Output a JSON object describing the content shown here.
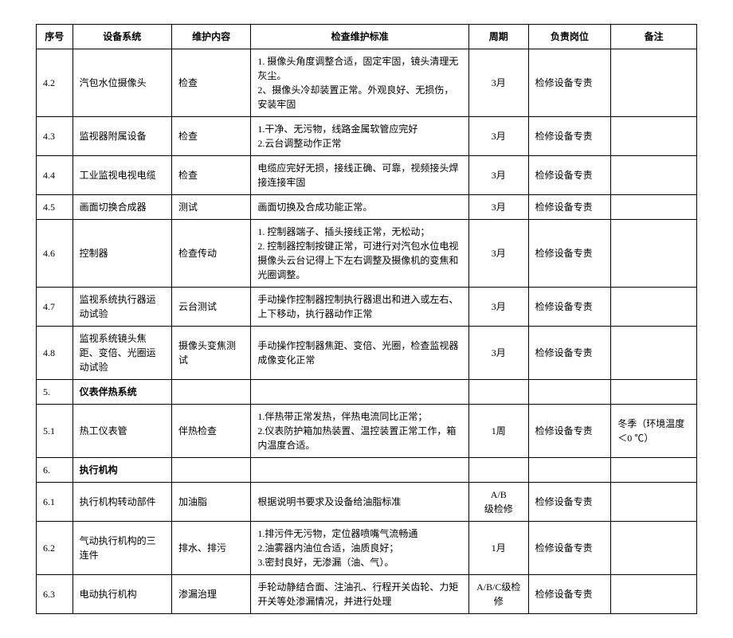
{
  "columns": [
    "序号",
    "设备系统",
    "维护内容",
    "检查维护标准",
    "周期",
    "负责岗位",
    "备注"
  ],
  "rows": [
    {
      "id": "4.2",
      "sys": "汽包水位摄像头",
      "maint": "检查",
      "std": "1. 摄像头角度调整合适，固定牢固，镜头清理无灰尘。\n2、摄像头冷却装置正常。外观良好、无损伤，安装牢固",
      "cycle": "3月",
      "duty": "检修设备专责",
      "remark": ""
    },
    {
      "id": "4.3",
      "sys": "监视器附属设备",
      "maint": "检查",
      "std": "1.干净、无污物，线路金属软管应完好\n2.云台调整动作正常",
      "cycle": "3月",
      "duty": "检修设备专责",
      "remark": ""
    },
    {
      "id": "4.4",
      "sys": "工业监视电视电缆",
      "maint": "检查",
      "std": "电缆应完好无损，接线正确、可靠，视频接头焊接连接牢固",
      "cycle": "3月",
      "duty": "检修设备专责",
      "remark": ""
    },
    {
      "id": "4.5",
      "sys": "画面切换合成器",
      "maint": "测试",
      "std": "画面切换及合成功能正常。",
      "cycle": "3月",
      "duty": "检修设备专责",
      "remark": ""
    },
    {
      "id": "4.6",
      "sys": "控制器",
      "maint": "检查传动",
      "std": "1. 控制器端子、插头接线正常，无松动；\n2. 控制器控制按键正常，可进行对汽包水位电视摄像头云台记得上下左右调整及摄像机的变焦和光圈调整。",
      "cycle": "3月",
      "duty": "检修设备专责",
      "remark": ""
    },
    {
      "id": "4.7",
      "sys": "监视系统执行器运动试验",
      "maint": "云台测试",
      "std": "手动操作控制器控制执行器退出和进入或左右、上下移动，执行器动作正常",
      "cycle": "3月",
      "duty": "检修设备专责",
      "remark": ""
    },
    {
      "id": "4.8",
      "sys": "监视系统镜头焦距、变倍、光圈运动试验",
      "maint": "摄像头变焦测试",
      "std": "手动操作控制器焦距、变倍、光圈，检查监视器成像变化正常",
      "cycle": "3月",
      "duty": "检修设备专责",
      "remark": ""
    },
    {
      "id": "5.",
      "sys": "仪表伴热系统",
      "bold": true
    },
    {
      "id": "5.1",
      "sys": "热工仪表管",
      "maint": "伴热检查",
      "std": "1.伴热带正常发热，伴热电流同比正常；\n2.仪表防护箱加热装置、温控装置正常工作，箱内温度合适。",
      "cycle": "1周",
      "duty": "检修设备专责",
      "remark": "冬季（环境温度＜0 ℃）"
    },
    {
      "id": "6.",
      "sys": "执行机构",
      "bold": true
    },
    {
      "id": "6.1",
      "sys": "执行机构转动部件",
      "maint": "加油脂",
      "std": "根据说明书要求及设备给油脂标准",
      "cycle": "A/B\n级检修",
      "duty": "检修设备专责",
      "remark": ""
    },
    {
      "id": "6.2",
      "sys": "气动执行机构的三连件",
      "maint": "排水、排污",
      "std": "1.排污件无污物，定位器喷嘴气流畅通\n2.油雾器内油位合适，油质良好；\n3.密封良好，无渗漏（油、气）。",
      "cycle": "1月",
      "duty": "检修设备专责",
      "remark": ""
    },
    {
      "id": "6.3",
      "sys": "电动执行机构",
      "maint": "渗漏治理",
      "std": "手轮动静结合面、注油孔、行程开关齿轮、力矩开关等处渗漏情况，并进行处理",
      "cycle": "A/B/C级检修",
      "duty": "检修设备专责",
      "remark": ""
    }
  ]
}
